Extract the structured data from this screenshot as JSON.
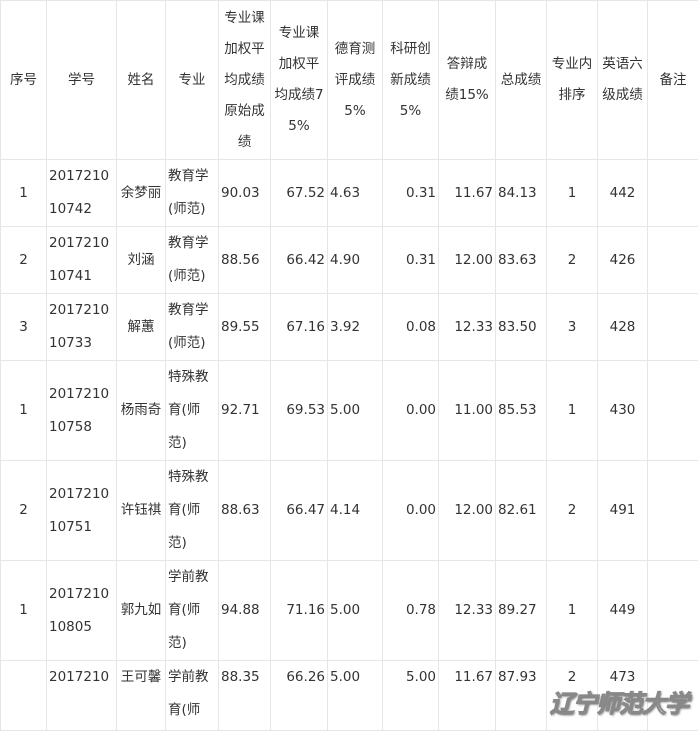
{
  "headers": [
    "序号",
    "学号",
    "姓名",
    "专业",
    "专业课加权平均成绩原始成绩",
    "专业课加权平均成绩75%",
    "德育测评成绩5%",
    "科研创新成绩5%",
    "答辩成绩15%",
    "总成绩",
    "专业内排序",
    "英语六级成绩",
    "备注"
  ],
  "rows": [
    [
      "1",
      "201721010742",
      "余梦丽",
      "教育学(师范)",
      "90.03",
      "67.52",
      "4.63",
      "0.31",
      "11.67",
      "84.13",
      "1",
      "442",
      ""
    ],
    [
      "2",
      "201721010741",
      "刘涵",
      "教育学(师范)",
      "88.56",
      "66.42",
      "4.90",
      "0.31",
      "12.00",
      "83.63",
      "2",
      "426",
      ""
    ],
    [
      "3",
      "201721010733",
      "解蕙",
      "教育学(师范)",
      "89.55",
      "67.16",
      "3.92",
      "0.08",
      "12.33",
      "83.50",
      "3",
      "428",
      ""
    ],
    [
      "1",
      "201721010758",
      "杨雨奇",
      "特殊教育(师范)",
      "92.71",
      "69.53",
      "5.00",
      "0.00",
      "11.00",
      "85.53",
      "1",
      "430",
      ""
    ],
    [
      "2",
      "201721010751",
      "许钰祺",
      "特殊教育(师范)",
      "88.63",
      "66.47",
      "4.14",
      "0.00",
      "12.00",
      "82.61",
      "2",
      "491",
      ""
    ],
    [
      "1",
      "201721010805",
      "郭九如",
      "学前教育(师范)",
      "94.88",
      "71.16",
      "5.00",
      "0.78",
      "12.33",
      "89.27",
      "1",
      "449",
      ""
    ],
    [
      "",
      "2017210",
      "王可馨",
      "学前教育(师",
      "88.35",
      "66.26",
      "5.00",
      "5.00",
      "11.67",
      "87.93",
      "2",
      "473",
      ""
    ]
  ],
  "watermark": "辽宁师范大学"
}
